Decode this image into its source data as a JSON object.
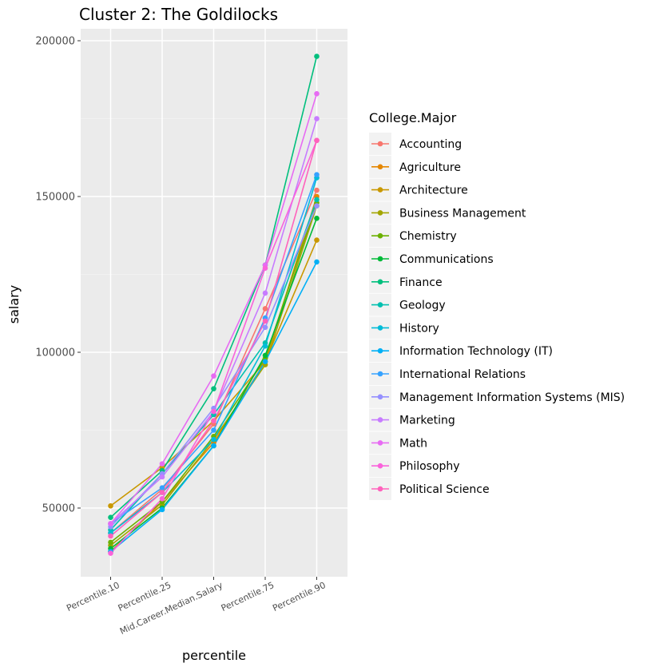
{
  "chart_data": {
    "type": "line",
    "title": "Cluster 2: The Goldilocks",
    "xlabel": "percentile",
    "ylabel": "salary",
    "legend_title": "College.Major",
    "legend_position": "right",
    "grid": true,
    "ylim": [
      30000,
      200000
    ],
    "yticks": [
      50000,
      100000,
      150000,
      200000
    ],
    "ytick_labels": [
      "50000",
      "100000",
      "150000",
      "200000"
    ],
    "categories": [
      "Percentile.10",
      "Percentile.25",
      "Mid.Career.Median.Salary",
      "Percentile.75",
      "Percentile.90"
    ],
    "series": [
      {
        "name": "Accounting",
        "color": "#F8766D",
        "values": [
          42000,
          56000,
          77000,
          114000,
          152000
        ]
      },
      {
        "name": "Agriculture",
        "color": "#E58700",
        "values": [
          36000,
          52000,
          71000,
          97000,
          150000
        ]
      },
      {
        "name": "Architecture",
        "color": "#C99800",
        "values": [
          50700,
          63000,
          78000,
          97000,
          136000
        ]
      },
      {
        "name": "Business Management",
        "color": "#A3A500",
        "values": [
          38000,
          51000,
          72000,
          96000,
          147000
        ]
      },
      {
        "name": "Chemistry",
        "color": "#6BB100",
        "values": [
          39000,
          52000,
          73000,
          98000,
          148000
        ]
      },
      {
        "name": "Communications",
        "color": "#00BA38",
        "values": [
          37000,
          50000,
          70000,
          99000,
          143000
        ]
      },
      {
        "name": "Finance",
        "color": "#00BF7D",
        "values": [
          47000,
          62000,
          88300,
          128000,
          195000
        ]
      },
      {
        "name": "Geology",
        "color": "#00C0AF",
        "values": [
          43000,
          61000,
          80000,
          103000,
          149000
        ]
      },
      {
        "name": "History",
        "color": "#00BCD8",
        "values": [
          42000,
          55000,
          72000,
          102000,
          156000
        ]
      },
      {
        "name": "Information Technology (IT)",
        "color": "#00B0F6",
        "values": [
          36000,
          49500,
          70000,
          97000,
          129000
        ]
      },
      {
        "name": "International Relations",
        "color": "#35A2FF",
        "values": [
          45000,
          56500,
          75000,
          111000,
          157000
        ]
      },
      {
        "name": "Management Information Systems (MIS)",
        "color": "#9590FF",
        "values": [
          44000,
          61000,
          82000,
          108000,
          147000
        ]
      },
      {
        "name": "Marketing",
        "color": "#C77CFF",
        "values": [
          45000,
          60000,
          81000,
          119000,
          175000
        ]
      },
      {
        "name": "Math",
        "color": "#E76BF3",
        "values": [
          45000,
          64200,
          92400,
          128000,
          183000
        ]
      },
      {
        "name": "Philosophy",
        "color": "#FA62DB",
        "values": [
          35500,
          53000,
          81000,
          127000,
          168000
        ]
      },
      {
        "name": "Political Science",
        "color": "#FF62BC",
        "values": [
          41000,
          55000,
          78000,
          110000,
          168000
        ]
      }
    ]
  }
}
